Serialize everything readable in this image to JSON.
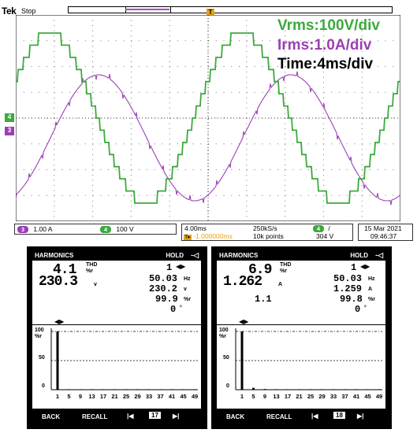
{
  "scope": {
    "logo": "Tek",
    "status": "Stop",
    "trigger_mark": "T",
    "overlay": {
      "vrms": "Vrms:100V/div",
      "irms": "Irms:1.0A/div",
      "time": "Time:4ms/div"
    },
    "channels": [
      {
        "badge": "3",
        "value": "1.00 A",
        "color": "#9b3fb5"
      },
      {
        "badge": "4",
        "value": "100 V",
        "color": "#3caa3c"
      }
    ],
    "timebase": {
      "scale": "4.00ms",
      "sample_rate": "250kS/s",
      "position": "-1.000000ms",
      "points": "10k points",
      "trig_badge": "4",
      "trig_slope": "/",
      "trig_level": "304 V"
    },
    "date": "15 Mar 2021",
    "time": "09:46:37",
    "colors": {
      "voltage": "#3caa3c",
      "current": "#9b3fb5",
      "trigger": "#e4a21a"
    }
  },
  "meters": [
    {
      "header": {
        "title": "HARMONICS",
        "mode": "HOLD",
        "icon": "battery-icon"
      },
      "thd_value": "4.1",
      "thd_label": "THD",
      "thd_unit": "%r",
      "main_value": "230.3",
      "main_unit": "v",
      "extra_value": "",
      "harmonic_no": "1",
      "freq": "50.03",
      "freq_unit": "Hz",
      "rms": "230.2",
      "rms_unit": "v",
      "pct": "99.9",
      "pct_unit": "%r",
      "angle": "0",
      "angle_unit": "°",
      "chart": {
        "ymax": "100",
        "yunit": "%r",
        "ymid": "50",
        "yzero": "0",
        "xticks": [
          "1",
          "5",
          "9",
          "13",
          "17",
          "21",
          "25",
          "29",
          "33",
          "37",
          "41",
          "45",
          "49"
        ],
        "bars": [
          100,
          0.4,
          0.3,
          0.5,
          0.3,
          0.4,
          0.2,
          0.3,
          0.2,
          0.2,
          0.2,
          0.2,
          0.1
        ]
      },
      "footer": {
        "back": "BACK",
        "recall": "RECALL",
        "page": "17"
      }
    },
    {
      "header": {
        "title": "HARMONICS",
        "mode": "HOLD",
        "icon": "battery-icon"
      },
      "thd_value": "6.9",
      "thd_label": "THD",
      "thd_unit": "%r",
      "main_value": "1.262",
      "main_unit": "A",
      "extra_value": "1.1",
      "harmonic_no": "1",
      "freq": "50.03",
      "freq_unit": "Hz",
      "rms": "1.259",
      "rms_unit": "A",
      "pct": "99.8",
      "pct_unit": "%r",
      "angle": "0",
      "angle_unit": "°",
      "chart": {
        "ymax": "100",
        "yunit": "%r",
        "ymid": "50",
        "yzero": "0",
        "xticks": [
          "1",
          "5",
          "9",
          "13",
          "17",
          "21",
          "25",
          "29",
          "33",
          "37",
          "41",
          "45",
          "49"
        ],
        "bars": [
          100,
          3.2,
          1.2,
          0.6,
          0.3,
          0.3,
          0.2,
          0.2,
          0.1,
          0.1,
          0.1,
          0.1,
          0.1
        ]
      },
      "footer": {
        "back": "BACK",
        "recall": "RECALL",
        "page": "18"
      }
    }
  ]
}
